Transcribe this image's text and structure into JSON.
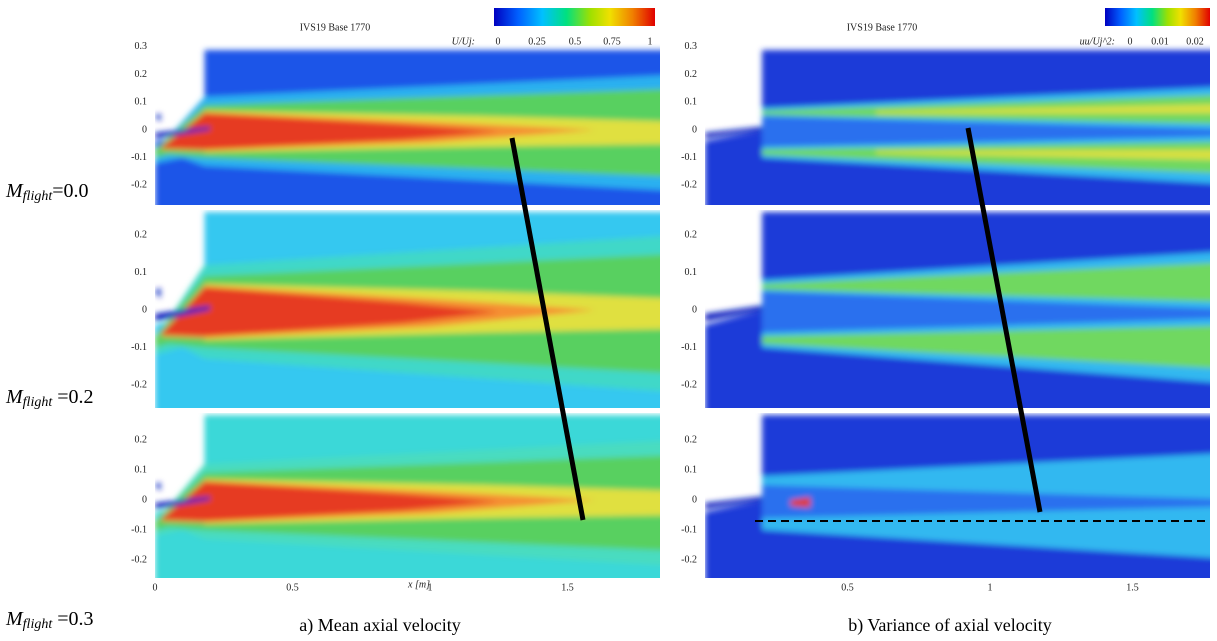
{
  "columns": [
    {
      "title": "IVS19 Base 1770",
      "colorbar": {
        "label": "U/Uj:",
        "ticks": [
          "0",
          "0.25",
          "0.5",
          "0.75",
          "1"
        ]
      },
      "caption": "a) Mean axial velocity"
    },
    {
      "title": "IVS19 Base 1770",
      "colorbar": {
        "label": "uu/Uj^2:",
        "ticks": [
          "0",
          "0.01",
          "0.02"
        ]
      },
      "caption": "b) Variance of axial velocity"
    }
  ],
  "rows": [
    {
      "label": {
        "symbol": "M",
        "subscript": "flight",
        "text": "=0.0"
      },
      "yticks": [
        "0.3",
        "0.2",
        "0.1",
        "0",
        "-0.1",
        "-0.2"
      ]
    },
    {
      "label": {
        "symbol": "M",
        "subscript": "flight",
        "text": " =0.2"
      },
      "yticks": [
        "0.2",
        "0.1",
        "0",
        "-0.1",
        "-0.2"
      ]
    },
    {
      "label": {
        "symbol": "M",
        "subscript": "flight",
        "text": " =0.3"
      },
      "yticks": [
        "0.2",
        "0.1",
        "0",
        "-0.1",
        "-0.2"
      ]
    }
  ],
  "xaxis": {
    "ticks": [
      "0",
      "0.5",
      "1",
      "1.5"
    ],
    "label": "x [m]"
  }
}
